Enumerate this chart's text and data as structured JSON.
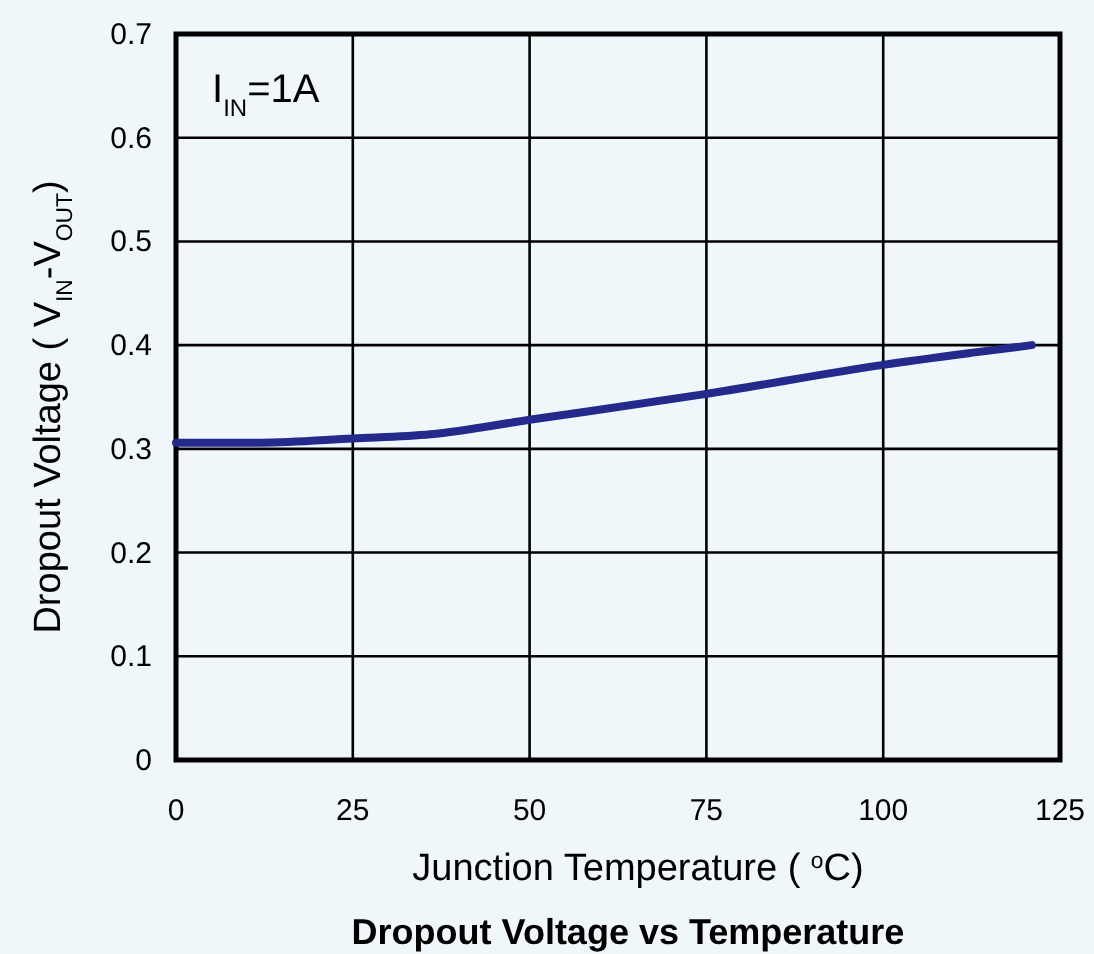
{
  "chart_data": {
    "type": "line",
    "title": "Dropout Voltage vs Temperature",
    "xlabel": "Junction Temperature ( $^{o}$C)",
    "ylabel": "Dropout Voltage ( V$_{IN}$-V$_{OUT}$)",
    "annotations": [
      "I$_{IN}$=1A"
    ],
    "xlim": [
      0,
      125
    ],
    "xticks": [
      0,
      25,
      50,
      75,
      100,
      125
    ],
    "ylim": [
      0,
      0.7
    ],
    "yticks": [
      0,
      0.1,
      0.2,
      0.3,
      0.4,
      0.5,
      0.6,
      0.7
    ],
    "grid": true,
    "marker": "none",
    "line_style": "solid",
    "series": [
      {
        "color": "#232a8c",
        "x": [
          0,
          12,
          25,
          36,
          50,
          75,
          100,
          113,
          121
        ],
        "values": [
          0.306,
          0.306,
          0.31,
          0.314,
          0.328,
          0.353,
          0.381,
          0.393,
          0.4
        ]
      }
    ]
  }
}
